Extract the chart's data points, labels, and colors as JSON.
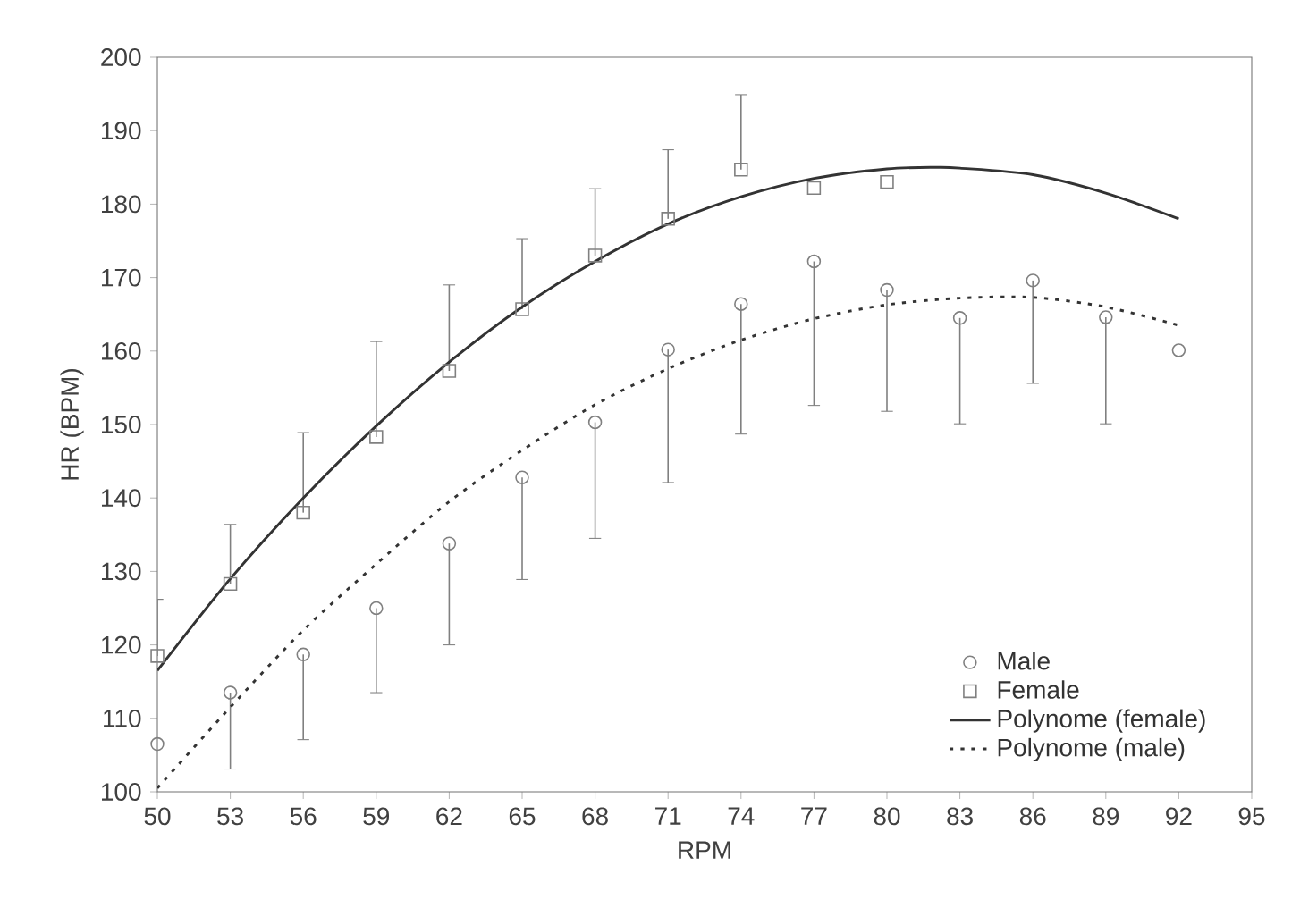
{
  "chart_data": {
    "type": "scatter",
    "xlabel": "RPM",
    "ylabel": "HR  (BPM)",
    "xlim": [
      50,
      95
    ],
    "xticks": [
      50,
      53,
      56,
      59,
      62,
      65,
      68,
      71,
      74,
      77,
      80,
      83,
      86,
      89,
      92,
      95
    ],
    "ylim": [
      100,
      200
    ],
    "yticks": [
      100,
      110,
      120,
      130,
      140,
      150,
      160,
      170,
      180,
      190,
      200
    ],
    "grid": false,
    "legend": "bottom right",
    "series": [
      {
        "name": "Male",
        "marker": "circle",
        "color": "#808080",
        "x": [
          50,
          53,
          56,
          59,
          62,
          65,
          68,
          71,
          74,
          77,
          80,
          83,
          86,
          89,
          92
        ],
        "values": [
          106.5,
          113.5,
          118.7,
          125,
          133.8,
          142.8,
          150.3,
          160.2,
          166.4,
          172.2,
          168.3,
          164.5,
          169.6,
          164.6,
          160.1
        ],
        "errors": [
          null,
          [
            103.1,
            113.5
          ],
          [
            107.1,
            118.7
          ],
          [
            113.5,
            125
          ],
          [
            120,
            133.8
          ],
          [
            128.9,
            142.8
          ],
          [
            134.5,
            150.3
          ],
          [
            142.1,
            160.2
          ],
          [
            148.7,
            166.4
          ],
          [
            152.6,
            172.2
          ],
          [
            151.8,
            168.3
          ],
          [
            150.1,
            164.5
          ],
          [
            155.6,
            169.6
          ],
          [
            150.1,
            164.6
          ],
          null
        ]
      },
      {
        "name": "Female",
        "marker": "square",
        "color": "#808080",
        "x": [
          50,
          53,
          56,
          59,
          62,
          65,
          68,
          71,
          74,
          77,
          80
        ],
        "values": [
          118.5,
          128.3,
          138,
          148.3,
          157.3,
          165.7,
          173,
          178,
          184.7,
          182.2,
          183
        ],
        "errors": [
          [
            118.5,
            126.2
          ],
          [
            128.3,
            136.4
          ],
          [
            138,
            148.9
          ],
          [
            148.3,
            161.3
          ],
          [
            157.3,
            169
          ],
          [
            165.7,
            175.3
          ],
          [
            173,
            182.1
          ],
          [
            178,
            187.4
          ],
          [
            184.7,
            194.9
          ],
          null,
          null
        ]
      },
      {
        "name": "Polynome (female)",
        "type": "line",
        "marker": "none",
        "line_style": "solid",
        "color": "#333333",
        "x": [
          50,
          53,
          56,
          59,
          62,
          65,
          68,
          71,
          74,
          77,
          80,
          82,
          83,
          86,
          89,
          92
        ],
        "values": [
          116.5,
          129,
          140,
          149.8,
          158.5,
          166,
          172.2,
          177.3,
          181,
          183.5,
          184.8,
          185,
          184.9,
          184,
          181.5,
          178
        ]
      },
      {
        "name": "Polynome (male)",
        "type": "line",
        "marker": "none",
        "line_style": "dotted",
        "color": "#333333",
        "x": [
          50,
          53,
          56,
          59,
          62,
          65,
          68,
          71,
          74,
          77,
          80,
          83,
          86,
          89,
          92
        ],
        "values": [
          100.5,
          111.5,
          122,
          131,
          139.5,
          146.5,
          152.7,
          157.6,
          161.5,
          164.4,
          166.3,
          167.2,
          167.3,
          166,
          163.5
        ]
      }
    ]
  }
}
